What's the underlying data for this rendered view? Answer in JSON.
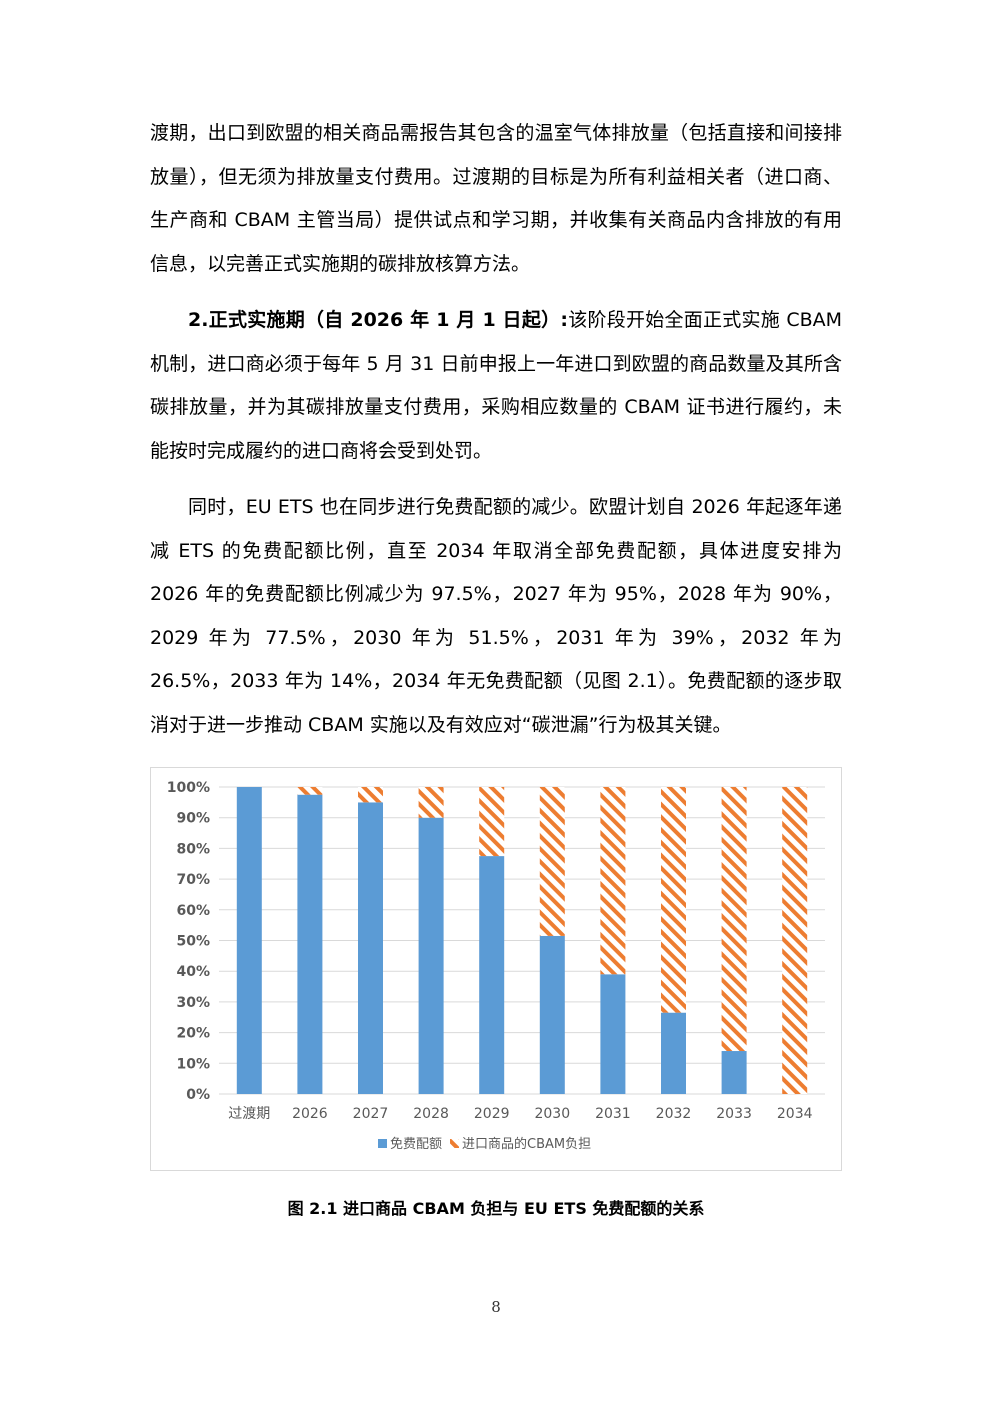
{
  "paragraphs": {
    "p1": "渡期，出口到欧盟的相关商品需报告其包含的温室气体排放量（包括直接和间接排放量），但无须为排放量支付费用。过渡期的目标是为所有利益相关者（进口商、生产商和 CBAM 主管当局）提供试点和学习期，并收集有关商品内含排放的有用信息，以完善正式实施期的碳排放核算方法。",
    "p2_bold": "2.正式实施期（自 2026 年 1 月 1 日起）:",
    "p2_rest": "该阶段开始全面正式实施 CBAM 机制，进口商必须于每年 5 月 31 日前申报上一年进口到欧盟的商品数量及其所含碳排放量，并为其碳排放量支付费用，采购相应数量的 CBAM 证书进行履约，未能按时完成履约的进口商将会受到处罚。",
    "p3": "同时，EU ETS 也在同步进行免费配额的减少。欧盟计划自 2026 年起逐年递减 ETS 的免费配额比例，直至 2034 年取消全部免费配额，具体进度安排为 2026 年的免费配额比例减少为 97.5%，2027 年为 95%，2028 年为 90%，2029 年为 77.5%，2030 年为 51.5%，2031 年为 39%，2032 年为 26.5%，2033 年为 14%，2034 年无免费配额（见图 2.1）。免费配额的逐步取消对于进一步推动 CBAM 实施以及有效应对“碳泄漏”行为极其关键。"
  },
  "chart_data": {
    "type": "bar",
    "stacked": true,
    "categories": [
      "过渡期",
      "2026",
      "2027",
      "2028",
      "2029",
      "2030",
      "2031",
      "2032",
      "2033",
      "2034"
    ],
    "series": [
      {
        "name": "免费配额",
        "values": [
          100,
          97.5,
          95,
          90,
          77.5,
          51.5,
          39,
          26.5,
          14,
          0
        ],
        "color": "#5b9bd5",
        "pattern": "solid"
      },
      {
        "name": "进口商品的CBAM负担",
        "values": [
          0,
          2.5,
          5,
          10,
          22.5,
          48.5,
          61,
          73.5,
          86,
          100
        ],
        "color": "#ed7d31",
        "pattern": "diagonal-hatch"
      }
    ],
    "y_ticks": [
      "0%",
      "10%",
      "20%",
      "30%",
      "40%",
      "50%",
      "60%",
      "70%",
      "80%",
      "90%",
      "100%"
    ],
    "ylim": [
      0,
      100
    ],
    "grid": true,
    "legend_position": "bottom"
  },
  "caption": "图 2.1  进口商品 CBAM 负担与 EU ETS 免费配额的关系",
  "page_number": "8"
}
